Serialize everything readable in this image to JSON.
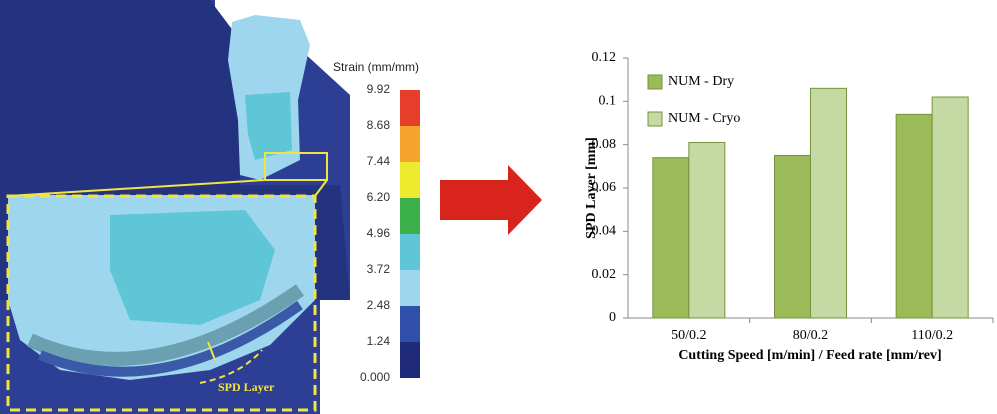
{
  "figure": {
    "colorbar": {
      "title": "Strain (mm/mm)",
      "ticks": [
        {
          "value": 0,
          "label": "0.000"
        },
        1.24,
        2.48,
        3.72,
        4.96,
        {
          "value": 6.2,
          "label": "6.20"
        },
        7.44,
        8.68,
        9.92
      ],
      "colors": [
        "#1f2a78",
        "#2f4fa8",
        "#9ed6ee",
        "#5ec6d6",
        "#3aaf4a",
        "#eeea2e",
        "#f4a42c",
        "#e63e2a"
      ]
    },
    "annotation": "SPD Layer"
  },
  "chart_data": {
    "type": "bar",
    "y_label": "SPD Layer [mm]",
    "x_label": "Cutting Speed [m/min] / Feed rate [mm/rev]",
    "categories": [
      "50/0.2",
      "80/0.2",
      "110/0.2"
    ],
    "series": [
      {
        "name": "NUM - Dry",
        "color": "#9bbb59",
        "values": [
          0.074,
          0.075,
          0.094
        ]
      },
      {
        "name": "NUM - Cryo",
        "color": "#c5d9a2",
        "values": [
          0.081,
          0.106,
          0.102
        ]
      }
    ],
    "ylim": [
      0,
      0.12
    ],
    "yticks": [
      0,
      0.02,
      0.04,
      0.06,
      0.08,
      0.1,
      0.12
    ],
    "grid": false,
    "legend": "upper left"
  }
}
